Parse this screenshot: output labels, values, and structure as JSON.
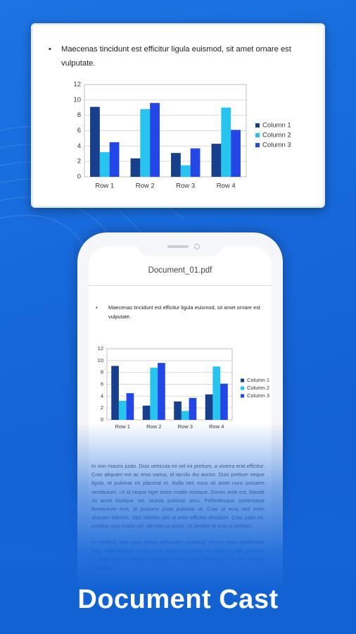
{
  "card": {
    "bullet": "Maecenas tincidunt est efficitur ligula euismod, sit amet ornare est vulputate."
  },
  "chart": {
    "type": "bar",
    "categories": [
      "Row 1",
      "Row 2",
      "Row 3",
      "Row 4"
    ],
    "series": [
      {
        "name": "Column 1",
        "color": "#173f8c",
        "values": [
          9.1,
          2.4,
          3.1,
          4.3
        ]
      },
      {
        "name": "Column 2",
        "color": "#27c4f0",
        "values": [
          3.2,
          8.8,
          1.5,
          9.0
        ]
      },
      {
        "name": "Column 3",
        "color": "#2346e6",
        "values": [
          4.5,
          9.6,
          3.7,
          6.1
        ]
      }
    ],
    "ylim": [
      0,
      12
    ],
    "yticks": [
      0,
      2,
      4,
      6,
      8,
      10,
      12
    ],
    "grid": true,
    "legend": "right"
  },
  "phone": {
    "filename": "Document_01.pdf",
    "bullet": "Maecenas tincidunt est efficitur ligula euismod, sit amet ornare est vulputate.",
    "paragraphs": [
      "In non mauris justo. Duis vehicula mi vel mi pretium, a viverra erat efficitur. Cras aliquam est ac eros varius, id iaculis dui auctor. Duis pretium neque ligula, et pulvinar mi placerat et. Nulla nec nunc sit amet nunc posuere vestibulum. Ut id neque eget tortor mattis tristique. Donec ante est, blandit sit amet tristique vel, lacinia pulvinar arcu. Pellentesque scelerisque fermentum erat, id posuere justo pulvinar ut. Cras id eros sed enim aliquam lobortis. Sed lobortis nisl ut eros efficitur tincidunt. Cras justo mi, porttitor quis mattis vel, ultricies ut purus. Ut facilisis et erat ut pretium.",
      "In eleifend velit vitae libero sollicitudin euismod. Fusce vitae vestibulum felis. Pellentesque scelerisque fermentum erat, id posuere justo pulvinar ut. Cras id eros sed enim aliquam lobortis. Sed lobortis nisl ut eros efficitur tincidunt."
    ]
  },
  "caption": "Document Cast"
}
